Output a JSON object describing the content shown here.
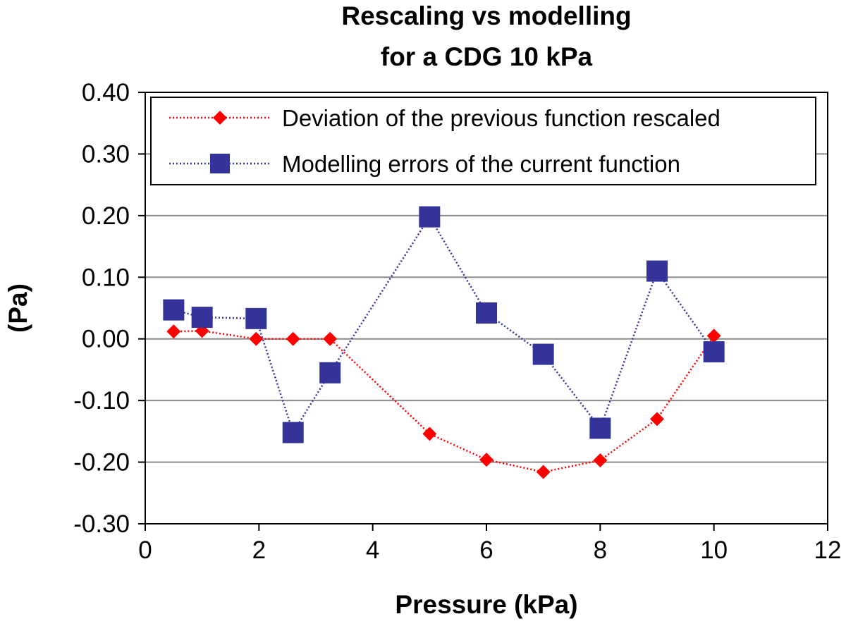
{
  "chart_data": {
    "type": "line",
    "title": [
      "Rescaling vs modelling",
      "for a CDG 10 kPa"
    ],
    "xlabel": "Pressure (kPa)",
    "ylabel": "(Pa)",
    "xlim": [
      0,
      12
    ],
    "ylim": [
      -0.3,
      0.4
    ],
    "x_ticks": [
      0,
      2,
      4,
      6,
      8,
      10,
      12
    ],
    "y_ticks": [
      -0.3,
      -0.2,
      -0.1,
      0.0,
      0.1,
      0.2,
      0.3,
      0.4
    ],
    "x_tick_labels": [
      "0",
      "2",
      "4",
      "6",
      "8",
      "10",
      "12"
    ],
    "y_tick_labels": [
      "-0.30",
      "-0.20",
      "-0.10",
      "0.00",
      "0.10",
      "0.20",
      "0.30",
      "0.40"
    ],
    "grid": "horizontal",
    "legend_position": "top",
    "series": [
      {
        "name": "Deviation of the previous function rescaled",
        "color": "#ff0000",
        "marker": "diamond",
        "line_style": "dotted",
        "x": [
          0.5,
          1.0,
          1.95,
          2.6,
          3.25,
          5.0,
          6.0,
          7.0,
          8.0,
          9.0,
          10.0
        ],
        "y": [
          0.012,
          0.013,
          0.0,
          0.0,
          0.0,
          -0.154,
          -0.196,
          -0.216,
          -0.197,
          -0.13,
          0.005
        ]
      },
      {
        "name": "Modelling errors of the current function",
        "color": "#333399",
        "marker": "square",
        "line_style": "dotted",
        "x": [
          0.5,
          1.0,
          1.95,
          2.6,
          3.25,
          5.0,
          6.0,
          7.0,
          8.0,
          9.0,
          10.0
        ],
        "y": [
          0.047,
          0.035,
          0.033,
          -0.152,
          -0.055,
          0.198,
          0.042,
          -0.025,
          -0.145,
          0.11,
          -0.021
        ]
      }
    ]
  }
}
